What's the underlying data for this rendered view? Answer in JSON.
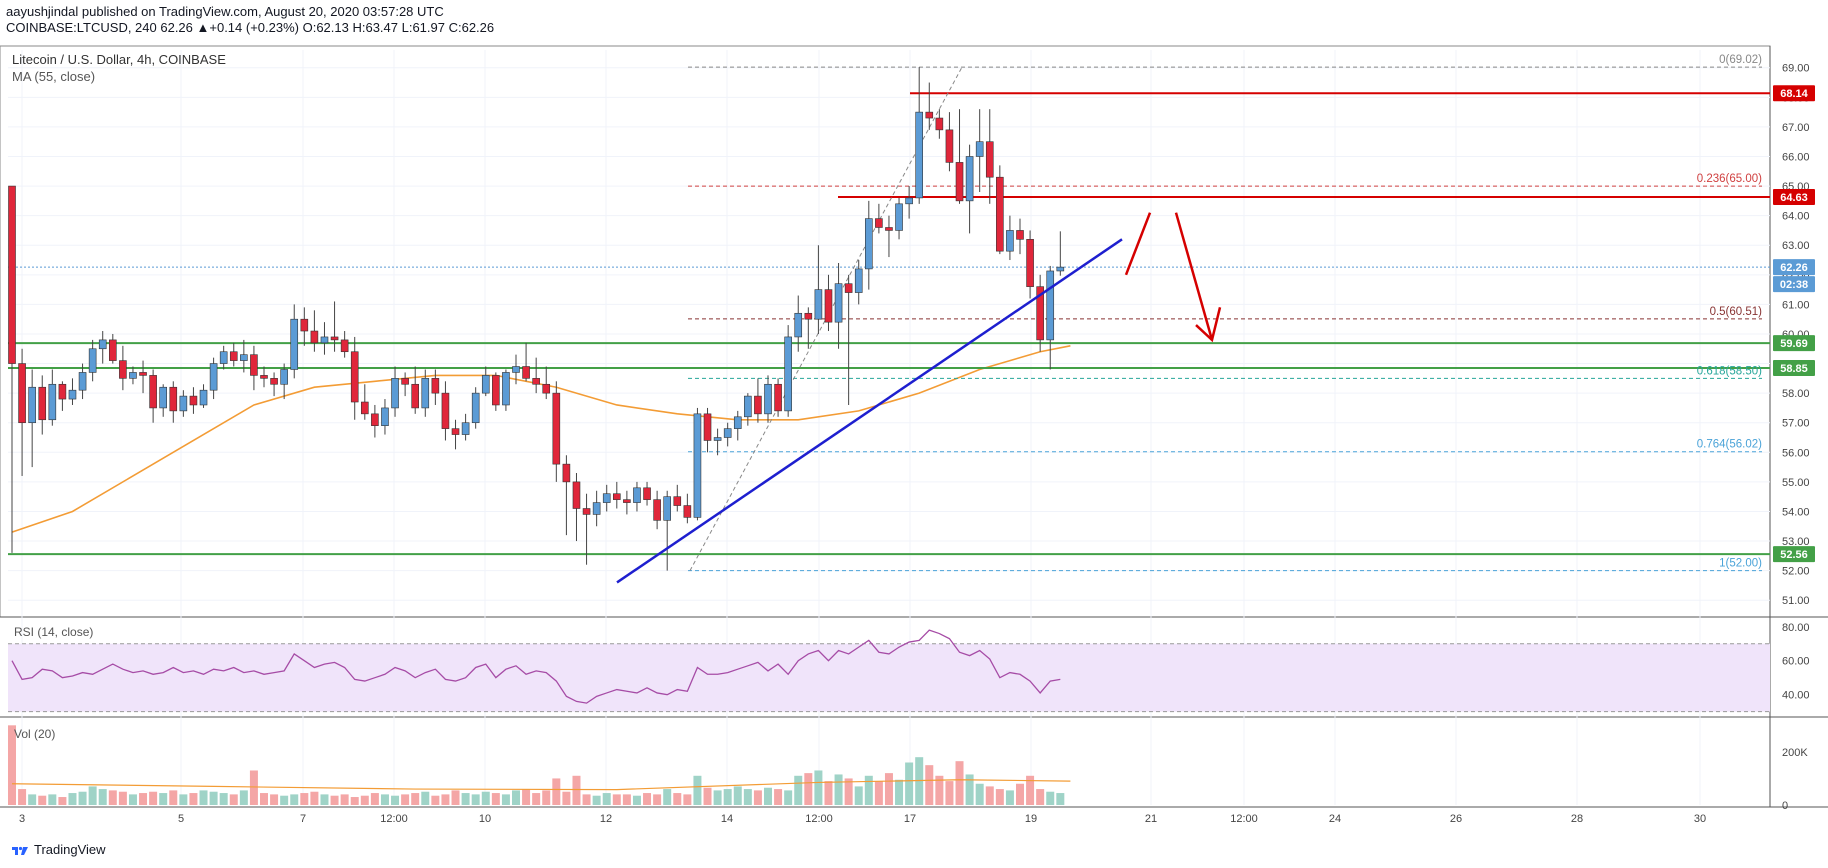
{
  "header": {
    "line1_author": "aayushjindal",
    "line1_rest": " published on TradingView.com, August 20, 2020 03:57:28 UTC",
    "line2": "COINBASE:LTCUSD, 240  62.26  ▲+0.14 (+0.23%)  O:62.13  H:63.47  L:61.97  C:62.26"
  },
  "chart_data": {
    "type": "candlestick",
    "title": "Litecoin / U.S. Dollar, 4h, COINBASE",
    "indicator_label": "MA (55, close)",
    "ylim": [
      50.5,
      69.6
    ],
    "y_ticks": [
      51.0,
      52.0,
      53.0,
      54.0,
      55.0,
      56.0,
      57.0,
      58.0,
      59.0,
      60.0,
      61.0,
      62.0,
      63.0,
      64.0,
      65.0,
      66.0,
      67.0,
      68.0,
      69.0
    ],
    "x_tick_labels": [
      "3",
      "5",
      "7",
      "12:00",
      "10",
      "12",
      "14",
      "12:00",
      "17",
      "19",
      "21",
      "12:00",
      "24",
      "26",
      "28",
      "30"
    ],
    "candles": [
      [
        65.0,
        65.0,
        52.6,
        59.0
      ],
      [
        59.0,
        59.5,
        55.2,
        57.0
      ],
      [
        57.0,
        58.8,
        55.5,
        58.2
      ],
      [
        58.2,
        58.6,
        56.6,
        57.1
      ],
      [
        57.1,
        58.8,
        56.9,
        58.3
      ],
      [
        58.3,
        58.4,
        57.4,
        57.8
      ],
      [
        57.8,
        58.5,
        57.6,
        58.1
      ],
      [
        58.1,
        59.0,
        57.8,
        58.7
      ],
      [
        58.7,
        59.8,
        58.4,
        59.5
      ],
      [
        59.5,
        60.1,
        59.0,
        59.8
      ],
      [
        59.8,
        60.0,
        59.0,
        59.1
      ],
      [
        59.1,
        59.6,
        58.1,
        58.5
      ],
      [
        58.5,
        58.9,
        58.3,
        58.7
      ],
      [
        58.7,
        59.1,
        58.0,
        58.6
      ],
      [
        58.6,
        58.8,
        57.0,
        57.5
      ],
      [
        57.5,
        58.3,
        57.2,
        58.2
      ],
      [
        58.2,
        58.4,
        57.0,
        57.4
      ],
      [
        57.4,
        58.1,
        57.2,
        57.9
      ],
      [
        57.9,
        58.2,
        57.3,
        57.6
      ],
      [
        57.6,
        58.3,
        57.5,
        58.1
      ],
      [
        58.1,
        59.2,
        57.8,
        59.0
      ],
      [
        59.0,
        59.6,
        58.8,
        59.4
      ],
      [
        59.4,
        59.7,
        58.9,
        59.1
      ],
      [
        59.1,
        59.8,
        58.7,
        59.3
      ],
      [
        59.3,
        59.6,
        58.1,
        58.6
      ],
      [
        58.6,
        58.9,
        58.2,
        58.5
      ],
      [
        58.5,
        58.7,
        57.9,
        58.3
      ],
      [
        58.3,
        59.0,
        57.8,
        58.8
      ],
      [
        58.8,
        61.0,
        58.5,
        60.5
      ],
      [
        60.5,
        60.9,
        59.6,
        60.1
      ],
      [
        60.1,
        60.8,
        59.4,
        59.7
      ],
      [
        59.7,
        60.4,
        59.3,
        59.9
      ],
      [
        59.9,
        61.1,
        59.4,
        59.8
      ],
      [
        59.8,
        60.1,
        59.2,
        59.4
      ],
      [
        59.4,
        59.9,
        57.1,
        57.7
      ],
      [
        57.7,
        58.3,
        57.1,
        57.3
      ],
      [
        57.3,
        57.6,
        56.5,
        56.9
      ],
      [
        56.9,
        57.8,
        56.6,
        57.5
      ],
      [
        57.5,
        58.9,
        57.2,
        58.5
      ],
      [
        58.5,
        58.7,
        57.9,
        58.3
      ],
      [
        58.3,
        58.9,
        57.3,
        57.5
      ],
      [
        57.5,
        58.8,
        57.2,
        58.5
      ],
      [
        58.5,
        58.8,
        57.6,
        58.0
      ],
      [
        58.0,
        58.4,
        56.4,
        56.8
      ],
      [
        56.8,
        57.1,
        56.1,
        56.6
      ],
      [
        56.6,
        57.3,
        56.4,
        57.0
      ],
      [
        57.0,
        58.2,
        56.8,
        58.0
      ],
      [
        58.0,
        58.9,
        57.9,
        58.6
      ],
      [
        58.6,
        58.7,
        57.4,
        57.6
      ],
      [
        57.6,
        58.8,
        57.4,
        58.7
      ],
      [
        58.7,
        59.3,
        58.3,
        58.9
      ],
      [
        58.9,
        59.7,
        58.4,
        58.5
      ],
      [
        58.5,
        59.2,
        58.0,
        58.3
      ],
      [
        58.3,
        58.9,
        57.8,
        58.0
      ],
      [
        58.0,
        58.4,
        55.0,
        55.6
      ],
      [
        55.6,
        55.9,
        53.2,
        55.0
      ],
      [
        55.0,
        55.3,
        53.0,
        54.1
      ],
      [
        54.1,
        54.6,
        52.2,
        53.9
      ],
      [
        53.9,
        54.7,
        53.5,
        54.3
      ],
      [
        54.3,
        54.9,
        54.0,
        54.6
      ],
      [
        54.6,
        55.0,
        54.1,
        54.4
      ],
      [
        54.4,
        54.7,
        53.9,
        54.3
      ],
      [
        54.3,
        55.0,
        54.0,
        54.8
      ],
      [
        54.8,
        55.0,
        54.2,
        54.4
      ],
      [
        54.4,
        54.7,
        53.4,
        53.7
      ],
      [
        53.7,
        54.7,
        52.0,
        54.5
      ],
      [
        54.5,
        54.9,
        54.0,
        54.2
      ],
      [
        54.2,
        54.6,
        53.6,
        53.8
      ],
      [
        53.8,
        57.5,
        53.7,
        57.3
      ],
      [
        57.3,
        57.5,
        56.0,
        56.4
      ],
      [
        56.4,
        56.8,
        55.9,
        56.5
      ],
      [
        56.5,
        57.0,
        56.2,
        56.8
      ],
      [
        56.8,
        57.4,
        56.4,
        57.2
      ],
      [
        57.2,
        58.0,
        56.9,
        57.9
      ],
      [
        57.9,
        58.5,
        57.0,
        57.3
      ],
      [
        57.3,
        58.6,
        57.0,
        58.3
      ],
      [
        58.3,
        58.5,
        57.2,
        57.4
      ],
      [
        57.4,
        60.3,
        57.2,
        59.9
      ],
      [
        59.9,
        61.3,
        59.4,
        60.7
      ],
      [
        60.7,
        60.9,
        59.5,
        60.5
      ],
      [
        60.5,
        63.0,
        60.0,
        61.5
      ],
      [
        61.5,
        62.0,
        60.1,
        60.4
      ],
      [
        60.4,
        62.4,
        59.5,
        61.7
      ],
      [
        61.7,
        62.0,
        57.6,
        61.4
      ],
      [
        61.4,
        62.5,
        61.0,
        62.2
      ],
      [
        62.2,
        64.5,
        61.5,
        63.9
      ],
      [
        63.9,
        64.4,
        63.4,
        63.6
      ],
      [
        63.6,
        64.0,
        62.6,
        63.5
      ],
      [
        63.5,
        64.6,
        63.2,
        64.4
      ],
      [
        64.4,
        65.0,
        63.9,
        64.6
      ],
      [
        64.6,
        69.02,
        64.4,
        67.5
      ],
      [
        67.5,
        68.5,
        66.9,
        67.3
      ],
      [
        67.3,
        67.6,
        66.6,
        66.9
      ],
      [
        66.9,
        67.5,
        65.5,
        65.8
      ],
      [
        65.8,
        67.6,
        64.4,
        64.5
      ],
      [
        64.5,
        66.4,
        63.4,
        66.0
      ],
      [
        66.0,
        67.6,
        64.8,
        66.5
      ],
      [
        66.5,
        67.6,
        64.4,
        65.3
      ],
      [
        65.3,
        65.7,
        62.7,
        62.8
      ],
      [
        62.8,
        64.0,
        62.5,
        63.5
      ],
      [
        63.5,
        63.9,
        62.7,
        63.2
      ],
      [
        63.2,
        63.5,
        61.2,
        61.6
      ],
      [
        61.6,
        62.0,
        59.4,
        59.8
      ],
      [
        59.8,
        62.3,
        58.8,
        62.13
      ],
      [
        62.13,
        63.47,
        61.97,
        62.26
      ]
    ],
    "ma55": [
      [
        0,
        53.3
      ],
      [
        6,
        54.0
      ],
      [
        12,
        55.2
      ],
      [
        18,
        56.4
      ],
      [
        24,
        57.6
      ],
      [
        30,
        58.2
      ],
      [
        36,
        58.4
      ],
      [
        42,
        58.6
      ],
      [
        48,
        58.6
      ],
      [
        54,
        58.2
      ],
      [
        60,
        57.6
      ],
      [
        66,
        57.3
      ],
      [
        72,
        57.1
      ],
      [
        78,
        57.1
      ],
      [
        84,
        57.4
      ],
      [
        90,
        58.0
      ],
      [
        96,
        58.8
      ],
      [
        102,
        59.4
      ],
      [
        105,
        59.6
      ]
    ],
    "support_levels": [
      59.69,
      58.85,
      52.56
    ],
    "resistance_levels": [
      68.14,
      64.63
    ],
    "fibonacci": [
      {
        "label": "0(69.02)",
        "value": 69.02
      },
      {
        "label": "0.236(65.00)",
        "value": 65.0
      },
      {
        "label": "0.5(60.51)",
        "value": 60.51
      },
      {
        "label": "0.618(58.50)",
        "value": 58.5
      },
      {
        "label": "0.764(56.02)",
        "value": 56.02
      },
      {
        "label": "1(52.00)",
        "value": 52.0
      }
    ],
    "trendline": [
      [
        51.6,
        63.2
      ]
    ],
    "current_price": 62.26,
    "countdown": "02:38",
    "price_tags": [
      {
        "label": "68.14",
        "value": 68.14,
        "color": "#d50000"
      },
      {
        "label": "64.63",
        "value": 64.63,
        "color": "#d50000"
      },
      {
        "label": "62.26",
        "value": 62.26,
        "color": "#5b9bd5"
      },
      {
        "label": "59.69",
        "value": 59.69,
        "color": "#43a047"
      },
      {
        "label": "58.85",
        "value": 58.85,
        "color": "#43a047"
      },
      {
        "label": "52.56",
        "value": 52.56,
        "color": "#43a047"
      }
    ],
    "rsi": {
      "label": "RSI (14, close)",
      "ticks": [
        80.0,
        60.0,
        40.0
      ],
      "ylim": [
        28,
        84
      ],
      "values": [
        60,
        49,
        50,
        55,
        54,
        50,
        51,
        53,
        52,
        55,
        58,
        55,
        53,
        54,
        52,
        53,
        56,
        53,
        54,
        52,
        55,
        54,
        56,
        53,
        54,
        52,
        53,
        54,
        64,
        60,
        56,
        58,
        59,
        56,
        49,
        48,
        50,
        52,
        56,
        54,
        50,
        53,
        55,
        49,
        48,
        50,
        56,
        58,
        50,
        55,
        57,
        52,
        54,
        53,
        48,
        39,
        36,
        35,
        39,
        41,
        43,
        42,
        41,
        44,
        41,
        40,
        43,
        42,
        56,
        52,
        52,
        53,
        55,
        57,
        59,
        54,
        58,
        52,
        60,
        64,
        66,
        60,
        66,
        64,
        68,
        72,
        65,
        64,
        68,
        71,
        72,
        78,
        76,
        73,
        65,
        63,
        66,
        61,
        50,
        53,
        52,
        48,
        41,
        48,
        49
      ]
    },
    "volume": {
      "label": "Vol (20)",
      "ticks_labels": [
        "200K",
        "0"
      ],
      "ticks_values": [
        200,
        0
      ],
      "ylim": [
        0,
        320
      ],
      "values": [
        300,
        60,
        40,
        35,
        40,
        30,
        45,
        50,
        70,
        60,
        55,
        50,
        40,
        45,
        50,
        45,
        55,
        40,
        45,
        55,
        50,
        45,
        40,
        55,
        130,
        45,
        40,
        35,
        40,
        45,
        50,
        40,
        35,
        40,
        30,
        35,
        45,
        40,
        35,
        40,
        45,
        50,
        35,
        40,
        55,
        45,
        40,
        50,
        45,
        40,
        55,
        60,
        45,
        55,
        100,
        50,
        110,
        40,
        35,
        45,
        40,
        40,
        35,
        45,
        40,
        60,
        45,
        40,
        110,
        65,
        55,
        60,
        70,
        60,
        55,
        65,
        60,
        55,
        110,
        120,
        130,
        90,
        115,
        100,
        70,
        110,
        90,
        120,
        95,
        160,
        180,
        150,
        110,
        90,
        165,
        115,
        80,
        70,
        60,
        55,
        80,
        110,
        60,
        50,
        45
      ],
      "ma": [
        [
          0,
          80
        ],
        [
          20,
          70
        ],
        [
          40,
          60
        ],
        [
          60,
          58
        ],
        [
          80,
          85
        ],
        [
          94,
          95
        ],
        [
          105,
          90
        ]
      ]
    },
    "colors": {
      "up": "#5b9bd5",
      "down": "#e0263a",
      "ma": "#f39c35",
      "trend": "#1e1fcf",
      "support": "#43a047",
      "resistance": "#d50000",
      "rsi_line": "#a64ca6",
      "rsi_band": "#f0e4fa",
      "vol_up": "#9fd3c7",
      "vol_down": "#f4a6a6"
    }
  },
  "footer": {
    "brand": "TradingView"
  }
}
